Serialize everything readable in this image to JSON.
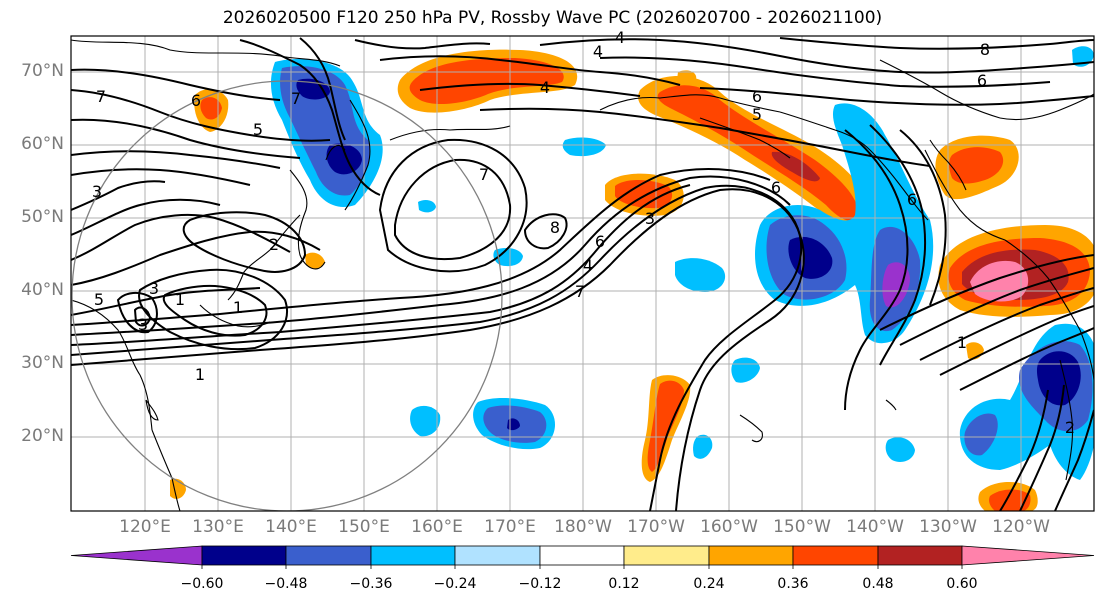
{
  "title": "2026020500 F120 250 hPa PV, Rossby Wave PC (2026020700 - 2026021100)",
  "lat_labels": [
    "70°N",
    "60°N",
    "50°N",
    "40°N",
    "30°N",
    "20°N"
  ],
  "lon_labels": [
    "120°E",
    "130°E",
    "140°E",
    "150°E",
    "160°E",
    "170°E",
    "180°W",
    "170°W",
    "160°W",
    "150°W",
    "140°W",
    "130°W",
    "120°W"
  ],
  "contour_labels": [
    "4",
    "4",
    "4",
    "7",
    "6",
    "5",
    "7",
    "6",
    "5",
    "6",
    "7",
    "8",
    "8",
    "6",
    "4",
    "7",
    "3",
    "1",
    "2",
    "1",
    "1",
    "5",
    "3",
    "3",
    "6",
    "6",
    "1",
    "2",
    "3"
  ],
  "colorbar": {
    "tick_labels": [
      "−0.60",
      "−0.48",
      "−0.36",
      "−0.24",
      "−0.12",
      "0.12",
      "0.24",
      "0.36",
      "0.48",
      "0.60"
    ],
    "colors": [
      "#9a32cd",
      "#00008b",
      "#3a5fcd",
      "#00bfff",
      "#b0e2ff",
      "#ffffff",
      "#ffec8b",
      "#ffa500",
      "#ff4500",
      "#b22222",
      "#ff82ab"
    ]
  }
}
